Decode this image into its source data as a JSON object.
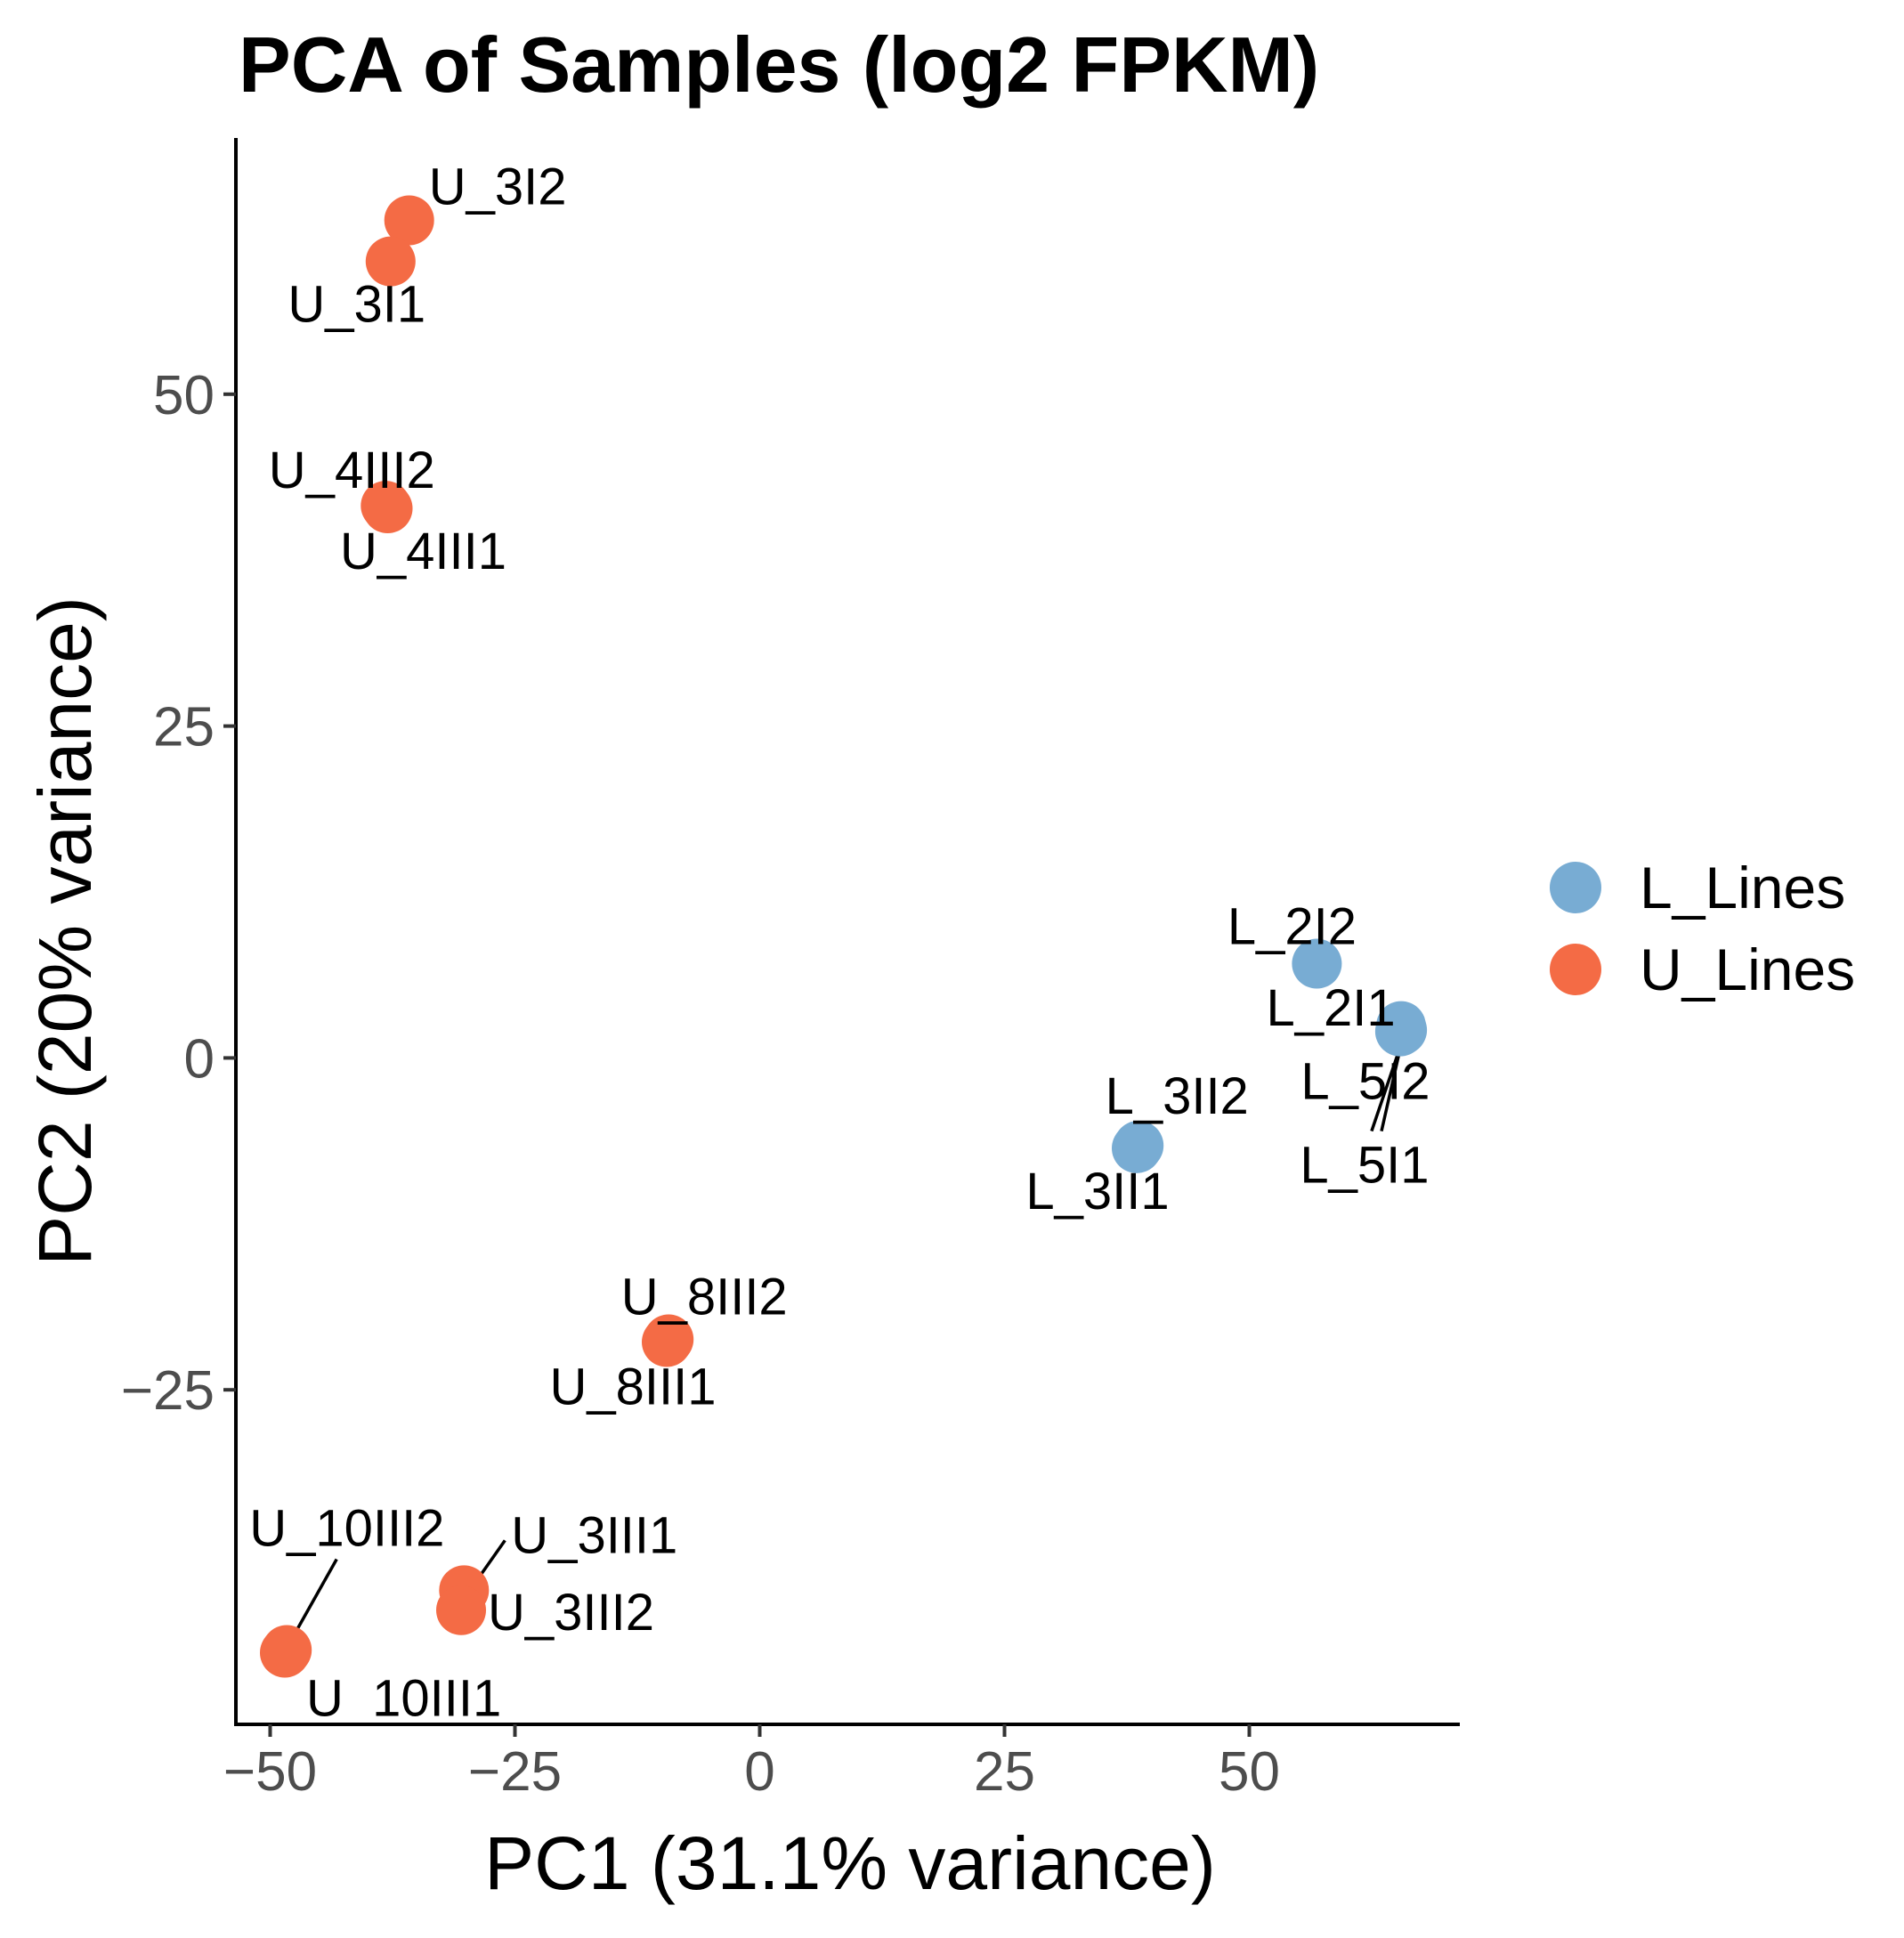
{
  "chart_data": {
    "type": "scatter",
    "title": "PCA of Samples (log2 FPKM)",
    "xlabel": "PC1 (31.1% variance)",
    "ylabel": "PC2 (20% variance)",
    "xlim": [
      -53.5,
      71.5
    ],
    "ylim": [
      -50.2,
      69.3
    ],
    "xticks": [
      -50,
      -25,
      0,
      25,
      50
    ],
    "xtick_labels": [
      "−50",
      "−25",
      "0",
      "25",
      "50"
    ],
    "yticks": [
      -25,
      0,
      25,
      50
    ],
    "ytick_labels": [
      "−25",
      "0",
      "25",
      "50"
    ],
    "grid": false,
    "legend_position": "right",
    "colors": {
      "L_Lines": "#78acd3",
      "U_Lines": "#f46b45"
    },
    "series": [
      {
        "name": "L_Lines",
        "color": "#78acd3",
        "points": [
          {
            "label": "L_2I2",
            "x": 56.9,
            "y": 7.1
          },
          {
            "label": "L_2I1",
            "x": 65.6,
            "y": 2.1
          },
          {
            "label": "L_5I2",
            "x": 65.5,
            "y": 2.4
          },
          {
            "label": "L_5I1",
            "x": 65.4,
            "y": 2.0
          },
          {
            "label": "L_3II2",
            "x": 38.7,
            "y": -6.6
          },
          {
            "label": "L_3II1",
            "x": 38.5,
            "y": -6.8
          }
        ]
      },
      {
        "name": "U_Lines",
        "color": "#f46b45",
        "points": [
          {
            "label": "U_3I2",
            "x": -35.8,
            "y": 63.1
          },
          {
            "label": "U_3I1",
            "x": -37.7,
            "y": 60.0
          },
          {
            "label": "U_4III2",
            "x": -38.2,
            "y": 41.6
          },
          {
            "label": "U_4III1",
            "x": -38.0,
            "y": 41.4
          },
          {
            "label": "U_8III2",
            "x": -9.3,
            "y": -21.2
          },
          {
            "label": "U_8III1",
            "x": -9.5,
            "y": -21.4
          },
          {
            "label": "U_3III1",
            "x": -30.2,
            "y": -40.1
          },
          {
            "label": "U_3III2",
            "x": -30.5,
            "y": -41.6
          },
          {
            "label": "U_10III2",
            "x": -48.3,
            "y": -44.6
          },
          {
            "label": "U_10III1",
            "x": -48.5,
            "y": -44.8
          }
        ]
      }
    ],
    "legend": [
      {
        "name": "L_Lines",
        "color": "#78acd3"
      },
      {
        "name": "U_Lines",
        "color": "#f46b45"
      }
    ]
  }
}
